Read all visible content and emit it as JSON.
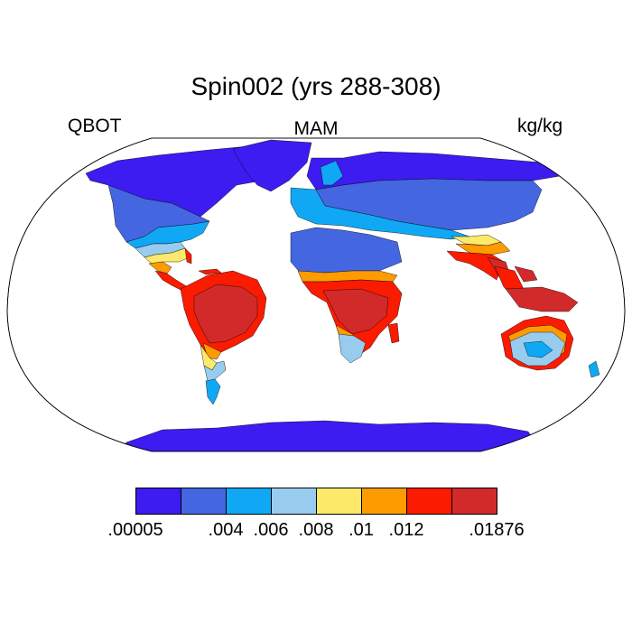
{
  "title": "Spin002 (yrs 288-308)",
  "left_label": "QBOT",
  "center_label": "MAM",
  "right_label": "kg/kg",
  "colorbar": {
    "colors": [
      "#3c1cf0",
      "#4466e0",
      "#10a8f5",
      "#98ccee",
      "#fde96a",
      "#fe9b00",
      "#fb1b00",
      "#d22a2a"
    ],
    "labels": [
      ".00005",
      ".004",
      ".006",
      ".008",
      ".01",
      ".012",
      ".01876"
    ],
    "label_boundaries": [
      0,
      2,
      3,
      4,
      5,
      6,
      8
    ]
  },
  "map_colors": {
    "land_outline": "#000000",
    "ocean": "#ffffff",
    "very_low": "#3c1cf0",
    "low": "#4466e0",
    "mid_low": "#10a8f5",
    "mid": "#98ccee",
    "yellow": "#fde96a",
    "orange": "#fe9b00",
    "red": "#fb1b00",
    "dark_red": "#d22a2a"
  }
}
